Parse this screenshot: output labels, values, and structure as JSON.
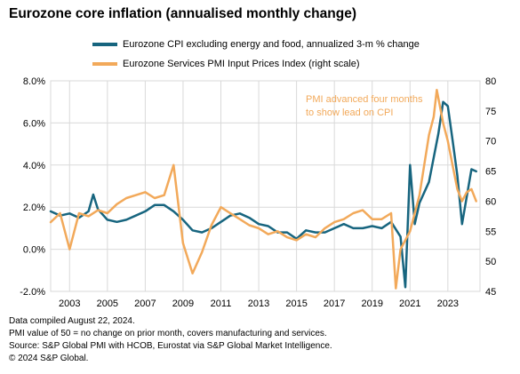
{
  "title": "Eurozone core inflation (annualised monthly change)",
  "legend": [
    {
      "label": "Eurozone CPI excluding energy and food, annualized 3-m % change",
      "color": "#17657f"
    },
    {
      "label": "Eurozone Services PMI Input Prices Index (right scale)",
      "color": "#f2a95a"
    }
  ],
  "annotation": [
    "PMI advanced four months",
    "to show lead on CPI"
  ],
  "footnotes": [
    "Data compiled August 22, 2024.",
    "PMI value of 50 = no change on prior month, covers manufacturing and services.",
    "Source: S&P Global PMI with HCOB, Eurostat via S&P Global Market Intelligence.",
    "© 2024 S&P Global."
  ],
  "chart_data": {
    "type": "line",
    "title": "Eurozone core inflation (annualised monthly change)",
    "x_ticks": [
      "2003",
      "2005",
      "2007",
      "2009",
      "2011",
      "2013",
      "2015",
      "2017",
      "2019",
      "2021",
      "2023"
    ],
    "y_left": {
      "min": -2,
      "max": 8,
      "ticks": [
        "-2.0%",
        "0.0%",
        "2.0%",
        "4.0%",
        "6.0%",
        "8.0%"
      ]
    },
    "y_right": {
      "min": 45,
      "max": 80,
      "ticks": [
        "45",
        "50",
        "55",
        "60",
        "65",
        "70",
        "75",
        "80"
      ]
    },
    "grid": true,
    "legend_position": "top",
    "series": [
      {
        "name": "Eurozone CPI excluding energy and food, annualized 3-m % change",
        "axis": "left",
        "color": "#17657f",
        "points": [
          [
            "2002-01",
            1.8
          ],
          [
            "2002-07",
            1.6
          ],
          [
            "2003-01",
            1.7
          ],
          [
            "2003-07",
            1.5
          ],
          [
            "2004-01",
            1.8
          ],
          [
            "2004-04",
            2.6
          ],
          [
            "2004-07",
            1.9
          ],
          [
            "2005-01",
            1.4
          ],
          [
            "2005-07",
            1.3
          ],
          [
            "2006-01",
            1.4
          ],
          [
            "2006-07",
            1.6
          ],
          [
            "2007-01",
            1.8
          ],
          [
            "2007-07",
            2.1
          ],
          [
            "2008-01",
            2.1
          ],
          [
            "2008-07",
            1.8
          ],
          [
            "2009-01",
            1.4
          ],
          [
            "2009-07",
            0.9
          ],
          [
            "2010-01",
            0.8
          ],
          [
            "2010-07",
            1.0
          ],
          [
            "2011-01",
            1.3
          ],
          [
            "2011-07",
            1.6
          ],
          [
            "2012-01",
            1.7
          ],
          [
            "2012-07",
            1.5
          ],
          [
            "2013-01",
            1.2
          ],
          [
            "2013-07",
            1.1
          ],
          [
            "2014-01",
            0.8
          ],
          [
            "2014-07",
            0.8
          ],
          [
            "2015-01",
            0.5
          ],
          [
            "2015-07",
            0.9
          ],
          [
            "2016-01",
            0.8
          ],
          [
            "2016-07",
            0.8
          ],
          [
            "2017-01",
            1.0
          ],
          [
            "2017-07",
            1.2
          ],
          [
            "2018-01",
            1.0
          ],
          [
            "2018-07",
            1.0
          ],
          [
            "2019-01",
            1.1
          ],
          [
            "2019-07",
            1.0
          ],
          [
            "2020-01",
            1.3
          ],
          [
            "2020-07",
            0.6
          ],
          [
            "2020-10",
            -1.8
          ],
          [
            "2021-01",
            4.0
          ],
          [
            "2021-04",
            1.2
          ],
          [
            "2021-07",
            2.2
          ],
          [
            "2022-01",
            3.2
          ],
          [
            "2022-07",
            5.5
          ],
          [
            "2022-10",
            7.0
          ],
          [
            "2023-01",
            6.8
          ],
          [
            "2023-04",
            5.2
          ],
          [
            "2023-07",
            3.5
          ],
          [
            "2023-10",
            1.2
          ],
          [
            "2024-01",
            2.5
          ],
          [
            "2024-04",
            3.8
          ],
          [
            "2024-07",
            3.7
          ]
        ]
      },
      {
        "name": "Eurozone Services PMI Input Prices Index (right scale)",
        "axis": "right",
        "color": "#f2a95a",
        "points": [
          [
            "2002-01",
            56.5
          ],
          [
            "2002-07",
            58.0
          ],
          [
            "2003-01",
            52.0
          ],
          [
            "2003-07",
            58.0
          ],
          [
            "2004-01",
            57.5
          ],
          [
            "2004-07",
            58.5
          ],
          [
            "2005-01",
            58.0
          ],
          [
            "2005-07",
            59.5
          ],
          [
            "2006-01",
            60.5
          ],
          [
            "2006-07",
            61.0
          ],
          [
            "2007-01",
            61.5
          ],
          [
            "2007-07",
            60.5
          ],
          [
            "2008-01",
            61.0
          ],
          [
            "2008-07",
            66.0
          ],
          [
            "2009-01",
            53.0
          ],
          [
            "2009-07",
            48.0
          ],
          [
            "2010-01",
            51.5
          ],
          [
            "2010-07",
            56.0
          ],
          [
            "2011-01",
            59.0
          ],
          [
            "2011-07",
            58.0
          ],
          [
            "2012-01",
            57.0
          ],
          [
            "2012-07",
            56.0
          ],
          [
            "2013-01",
            55.5
          ],
          [
            "2013-07",
            54.5
          ],
          [
            "2014-01",
            55.0
          ],
          [
            "2014-07",
            54.0
          ],
          [
            "2015-01",
            53.5
          ],
          [
            "2015-07",
            54.5
          ],
          [
            "2016-01",
            54.0
          ],
          [
            "2016-07",
            55.5
          ],
          [
            "2017-01",
            56.5
          ],
          [
            "2017-07",
            57.0
          ],
          [
            "2018-01",
            58.0
          ],
          [
            "2018-07",
            58.5
          ],
          [
            "2019-01",
            57.0
          ],
          [
            "2019-07",
            57.0
          ],
          [
            "2020-01",
            58.0
          ],
          [
            "2020-04",
            45.5
          ],
          [
            "2020-07",
            52.0
          ],
          [
            "2021-01",
            55.0
          ],
          [
            "2021-07",
            61.0
          ],
          [
            "2022-01",
            71.0
          ],
          [
            "2022-04",
            74.0
          ],
          [
            "2022-06",
            78.5
          ],
          [
            "2022-10",
            73.0
          ],
          [
            "2023-01",
            70.0
          ],
          [
            "2023-04",
            66.0
          ],
          [
            "2023-07",
            62.0
          ],
          [
            "2023-10",
            60.0
          ],
          [
            "2024-01",
            61.5
          ],
          [
            "2024-04",
            62.0
          ],
          [
            "2024-07",
            60.0
          ]
        ]
      }
    ]
  }
}
